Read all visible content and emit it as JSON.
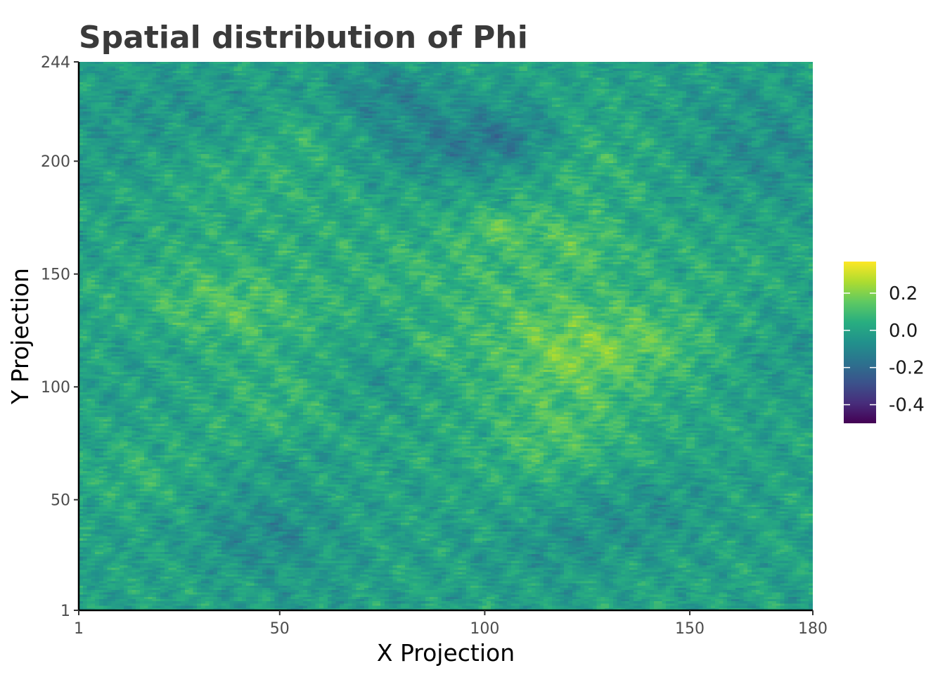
{
  "chart_data": {
    "type": "heatmap",
    "title": "Spatial distribution of Phi",
    "xlabel": "X Projection",
    "ylabel": "Y Projection",
    "x_range": [
      1,
      180
    ],
    "y_range": [
      1,
      244
    ],
    "x_ticks": [
      1,
      50,
      100,
      150,
      180
    ],
    "y_ticks": [
      1,
      50,
      100,
      150,
      200,
      244
    ],
    "value_range": [
      -0.5,
      0.37
    ],
    "colormap": "viridis",
    "legend": {
      "title": "",
      "placement": "right",
      "ticks": [
        0.2,
        0.0,
        -0.2,
        -0.4
      ],
      "tick_labels": [
        "0.2",
        "0.0",
        "-0.2",
        "-0.4"
      ]
    },
    "grid": false
  }
}
